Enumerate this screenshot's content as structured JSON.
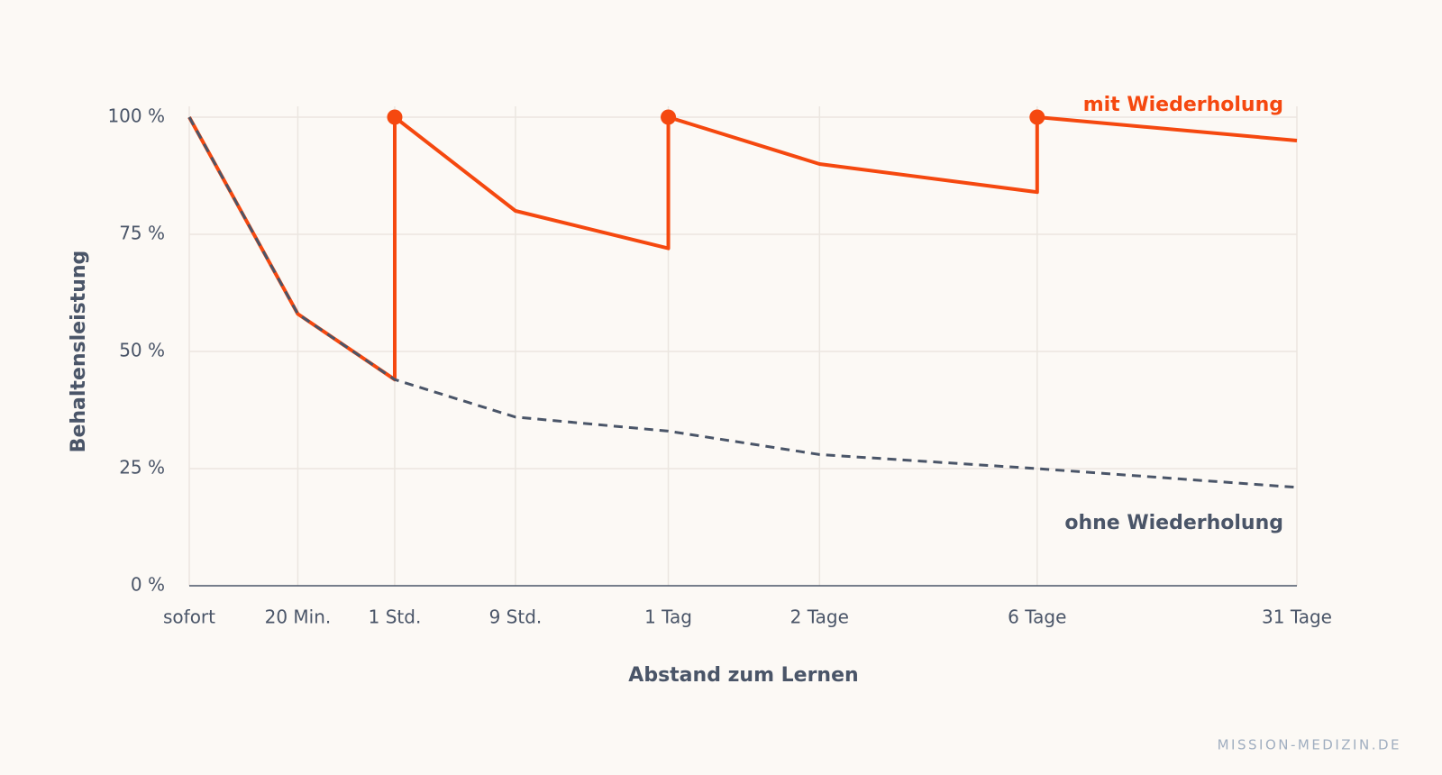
{
  "chart_data": {
    "type": "line",
    "x_label": "Abstand zum Lernen",
    "y_label": "Behaltensleistung",
    "source": "MISSION-MEDIZIN.DE",
    "categories": [
      "sofort",
      "20 Min.",
      "1 Std.",
      "9 Std.",
      "1 Tag",
      "2 Tage",
      "6 Tage",
      "31 Tage"
    ],
    "ylim": [
      0,
      100
    ],
    "yticks": [
      {
        "value": 0,
        "label": "0 %"
      },
      {
        "value": 25,
        "label": "25 %"
      },
      {
        "value": 50,
        "label": "50 %"
      },
      {
        "value": 75,
        "label": "75 %"
      },
      {
        "value": 100,
        "label": "100 %"
      }
    ],
    "grid": true,
    "series": [
      {
        "name": "mit Wiederholung",
        "color": "#f5480f",
        "dashed": false,
        "x": [
          "sofort",
          "20 Min.",
          "1 Std.",
          "1 Std.",
          "9 Std.",
          "1 Tag",
          "1 Tag",
          "2 Tage",
          "6 Tage",
          "6 Tage",
          "31 Tage"
        ],
        "values": [
          100,
          58,
          44,
          100,
          80,
          72,
          100,
          90,
          84,
          100,
          95
        ]
      },
      {
        "name": "ohne Wiederholung",
        "color": "#4a5568",
        "dashed": true,
        "x": [
          "sofort",
          "20 Min.",
          "1 Std.",
          "9 Std.",
          "1 Tag",
          "2 Tage",
          "6 Tage",
          "31 Tage"
        ],
        "values": [
          100,
          58,
          44,
          36,
          33,
          28,
          25,
          21
        ]
      }
    ]
  }
}
